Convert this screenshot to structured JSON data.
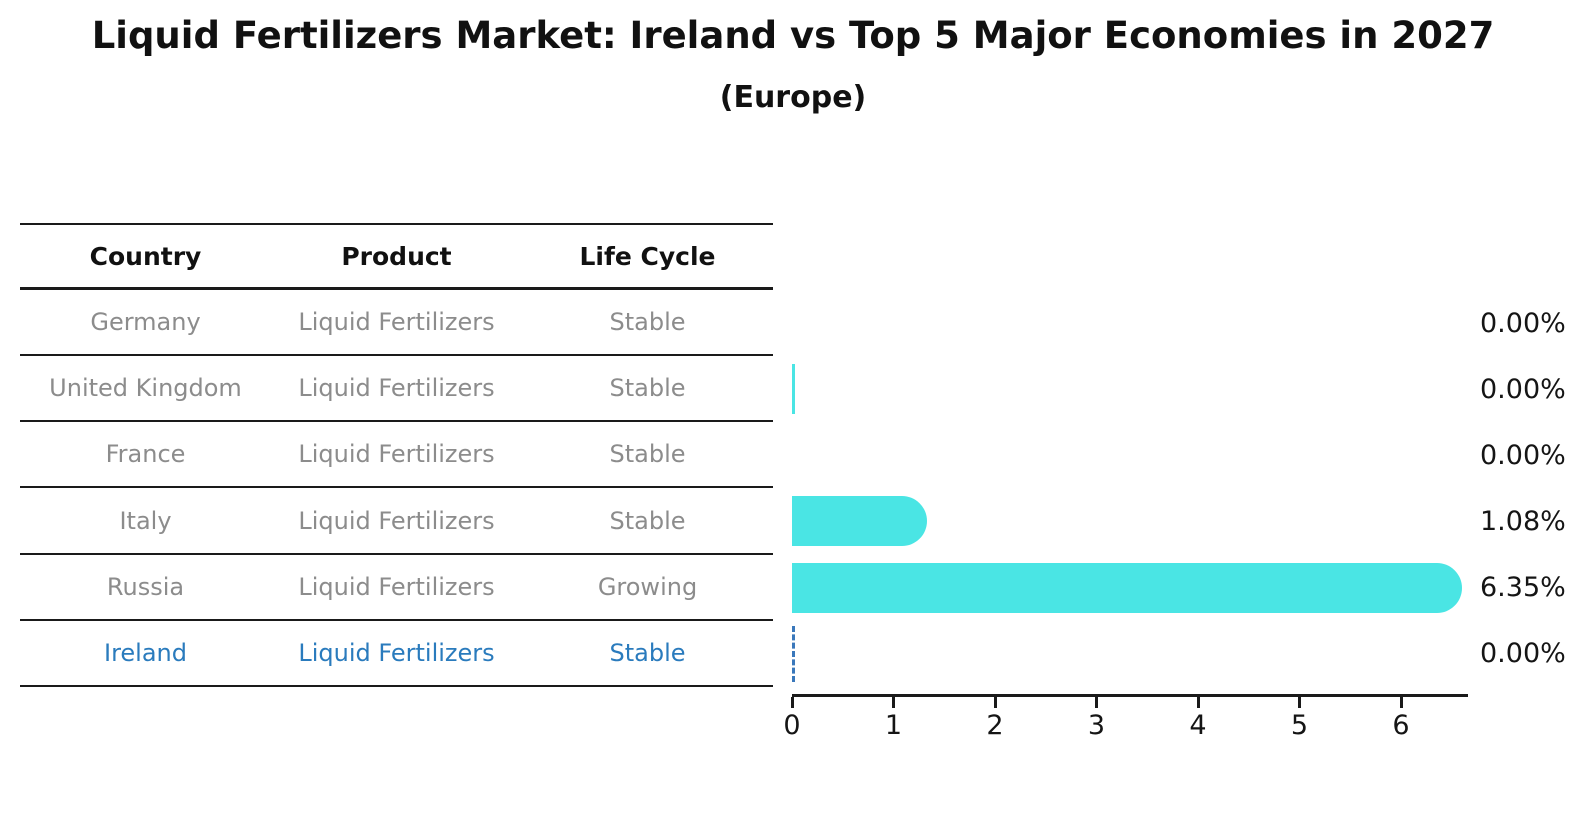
{
  "title": "Liquid Fertilizers Market: Ireland vs Top 5 Major Economies in 2027",
  "subtitle": "(Europe)",
  "table": {
    "headers": [
      "Country",
      "Product",
      "Life Cycle"
    ],
    "rows": [
      {
        "country": "Germany",
        "product": "Liquid Fertilizers",
        "life_cycle": "Stable",
        "highlight": false
      },
      {
        "country": "United Kingdom",
        "product": "Liquid Fertilizers",
        "life_cycle": "Stable",
        "highlight": false
      },
      {
        "country": "France",
        "product": "Liquid Fertilizers",
        "life_cycle": "Stable",
        "highlight": false
      },
      {
        "country": "Italy",
        "product": "Liquid Fertilizers",
        "life_cycle": "Stable",
        "highlight": false
      },
      {
        "country": "Russia",
        "product": "Liquid Fertilizers",
        "life_cycle": "Growing",
        "highlight": false
      },
      {
        "country": "Ireland",
        "product": "Liquid Fertilizers",
        "life_cycle": "Stable",
        "highlight": true
      }
    ]
  },
  "chart_data": {
    "type": "bar",
    "orientation": "horizontal",
    "title": "Liquid Fertilizers Market: Ireland vs Top 5 Major Economies in 2027",
    "subtitle": "(Europe)",
    "categories": [
      "Germany",
      "United Kingdom",
      "France",
      "Italy",
      "Russia",
      "Ireland"
    ],
    "values": [
      0.0,
      0.0,
      0.0,
      1.08,
      6.35,
      0.0
    ],
    "value_labels": [
      "0.00%",
      "0.00%",
      "0.00%",
      "1.08%",
      "6.35%",
      "0.00%"
    ],
    "bar_styles": [
      "none",
      "sliver",
      "none",
      "bar",
      "bar",
      "dashed-marker"
    ],
    "x_ticks": [
      "0",
      "1",
      "2",
      "3",
      "4",
      "5",
      "6"
    ],
    "xlim": [
      0,
      6.66
    ],
    "grid": false,
    "legend": false,
    "xlabel": "",
    "ylabel": ""
  },
  "colors": {
    "bar": "#4ae5e4",
    "row_text": "#8c8c8c",
    "highlight_text": "#2a7bbd",
    "dashed_marker": "#3a78bb",
    "header_text": "#111111",
    "axis": "#1a1a1a"
  }
}
